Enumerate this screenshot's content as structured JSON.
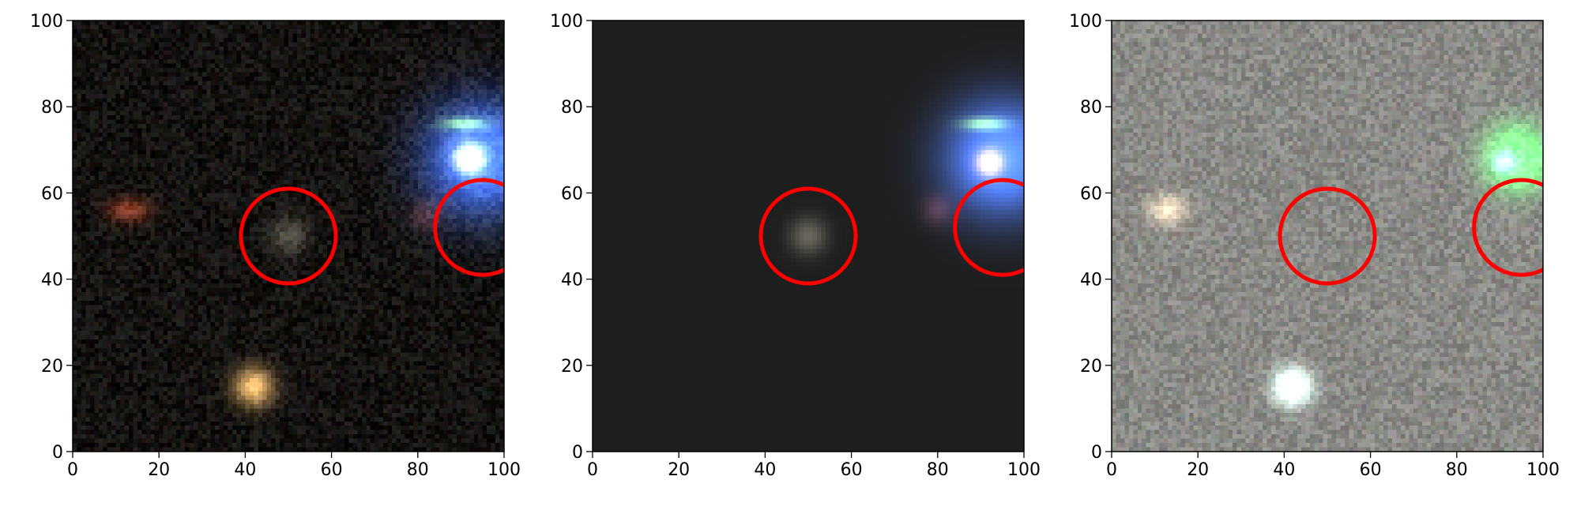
{
  "panels": [
    {
      "name": "image",
      "background": "#141210",
      "noise": 0.28,
      "sources": [
        {
          "x": 95,
          "y": 68,
          "sx": 9,
          "sy": 9,
          "color": [
            0.25,
            0.45,
            1.0
          ],
          "amp": 1.25
        },
        {
          "x": 92,
          "y": 68,
          "sx": 2.2,
          "sy": 2.2,
          "color": [
            1.0,
            1.0,
            0.95
          ],
          "amp": 1.4
        },
        {
          "x": 42,
          "y": 15,
          "sx": 3.2,
          "sy": 3.2,
          "color": [
            1.0,
            0.78,
            0.45
          ],
          "amp": 0.95
        },
        {
          "x": 13,
          "y": 56,
          "sx": 3.5,
          "sy": 2.0,
          "color": [
            0.9,
            0.35,
            0.2
          ],
          "amp": 0.55
        },
        {
          "x": 50,
          "y": 50,
          "sx": 3.0,
          "sy": 3.0,
          "color": [
            0.75,
            0.72,
            0.62
          ],
          "amp": 0.35
        },
        {
          "x": 82,
          "y": 55,
          "sx": 2.5,
          "sy": 2.5,
          "color": [
            0.8,
            0.35,
            0.35
          ],
          "amp": 0.3
        },
        {
          "x": 91,
          "y": 76,
          "sx": 3.5,
          "sy": 1.0,
          "color": [
            0.6,
            0.9,
            0.1
          ],
          "amp": 0.8
        }
      ]
    },
    {
      "name": "model",
      "background": "#1e1e1e",
      "noise": 0.0,
      "sources": [
        {
          "x": 95,
          "y": 68,
          "sx": 9,
          "sy": 9,
          "color": [
            0.25,
            0.45,
            1.0
          ],
          "amp": 1.25
        },
        {
          "x": 92,
          "y": 67,
          "sx": 2.0,
          "sy": 2.0,
          "color": [
            1.0,
            0.55,
            0.35
          ],
          "amp": 1.2
        },
        {
          "x": 50,
          "y": 50,
          "sx": 3.0,
          "sy": 3.0,
          "color": [
            0.75,
            0.72,
            0.62
          ],
          "amp": 0.4
        },
        {
          "x": 80,
          "y": 56,
          "sx": 2.5,
          "sy": 2.5,
          "color": [
            0.75,
            0.35,
            0.45
          ],
          "amp": 0.3
        },
        {
          "x": 91,
          "y": 76,
          "sx": 3.5,
          "sy": 1.0,
          "color": [
            0.6,
            0.9,
            0.1
          ],
          "amp": 0.8
        }
      ]
    },
    {
      "name": "residual",
      "background": "#8a8a86",
      "noise": 0.35,
      "sources": [
        {
          "x": 42,
          "y": 15,
          "sx": 3.0,
          "sy": 3.0,
          "color": [
            0.8,
            1.0,
            0.95
          ],
          "amp": 1.0
        },
        {
          "x": 13,
          "y": 56,
          "sx": 3.0,
          "sy": 2.5,
          "color": [
            1.0,
            0.8,
            0.6
          ],
          "amp": 0.5
        },
        {
          "x": 94,
          "y": 68,
          "sx": 5.0,
          "sy": 5.0,
          "color": [
            0.1,
            1.0,
            0.2
          ],
          "amp": 0.9
        },
        {
          "x": 91,
          "y": 67,
          "sx": 1.5,
          "sy": 1.5,
          "color": [
            0.4,
            0.05,
            0.9
          ],
          "amp": 1.0
        }
      ]
    }
  ],
  "axes": {
    "xlim": [
      0,
      100
    ],
    "ylim": [
      0,
      100
    ],
    "xticks": [
      "0",
      "20",
      "40",
      "60",
      "80",
      "100"
    ],
    "yticks": [
      "0",
      "20",
      "40",
      "60",
      "80",
      "100"
    ]
  },
  "circles": [
    {
      "x": 50,
      "y": 50,
      "r": 11
    },
    {
      "x": 95,
      "y": 52,
      "r": 11
    }
  ],
  "circle_color": "#ff0000"
}
